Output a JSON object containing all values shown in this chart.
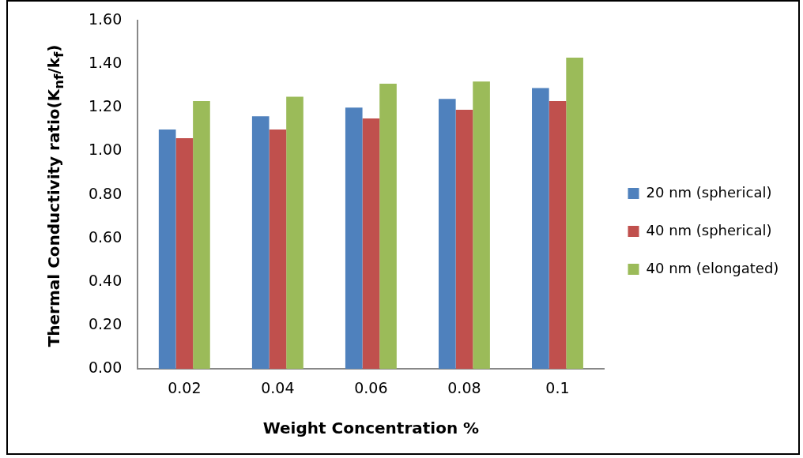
{
  "chart_data": {
    "type": "bar",
    "xlabel": "Weight Concentration %",
    "ylabel": "Thermal Conductivity ratio(K$_{nf}$/k$_{f}$)",
    "categories": [
      "0.02",
      "0.04",
      "0.06",
      "0.08",
      "0.1"
    ],
    "series": [
      {
        "name": "20 nm (spherical)",
        "color": "#4f81bd",
        "values": [
          1.1,
          1.16,
          1.2,
          1.24,
          1.29
        ]
      },
      {
        "name": "40 nm (spherical)",
        "color": "#c0504d",
        "values": [
          1.06,
          1.1,
          1.15,
          1.19,
          1.23
        ]
      },
      {
        "name": "40 nm (elongated)",
        "color": "#9bbb59",
        "values": [
          1.23,
          1.25,
          1.31,
          1.32,
          1.43
        ]
      }
    ],
    "ylim": [
      0,
      1.6
    ],
    "yticks": [
      {
        "value": 0,
        "label": "0.00"
      },
      {
        "value": 0.2,
        "label": "0.20"
      },
      {
        "value": 0.4,
        "label": "0.40"
      },
      {
        "value": 0.6,
        "label": "0.60"
      },
      {
        "value": 0.8,
        "label": "0.80"
      },
      {
        "value": 1.0,
        "label": "1.00"
      },
      {
        "value": 1.2,
        "label": "1.20"
      },
      {
        "value": 1.4,
        "label": "1.40"
      },
      {
        "value": 1.6,
        "label": "1.60"
      }
    ],
    "grid": false,
    "legend": "right"
  }
}
